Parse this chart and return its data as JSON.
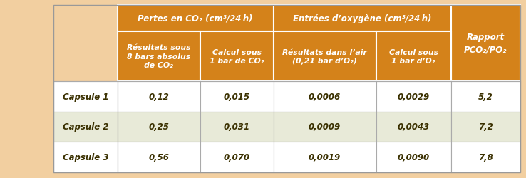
{
  "outer_bg": "#f2cfa0",
  "header_orange": "#d4821a",
  "row_white": "#ffffff",
  "row_green": "#e8ead8",
  "text_white": "#ffffff",
  "text_dark": "#3a3000",
  "col1_header_top": "Pertes en CO₂ (cm³/24 h)",
  "col2_header_top": "Entrées d’oxygène (cm³/24 h)",
  "col_rapport": "Rapport\nPCO₂/PO₂",
  "sub_headers": [
    "Résultats sous\n8 bars absolus\nde CO₂",
    "Calcul sous\n1 bar de CO₂",
    "Résultats dans l’air\n(0,21 bar d’O₂)",
    "Calcul sous\n1 bar d’O₂"
  ],
  "row_labels": [
    "Capsule 1",
    "Capsule 2",
    "Capsule 3"
  ],
  "data": [
    [
      "0,12",
      "0,015",
      "0,0006",
      "0,0029",
      "5,2"
    ],
    [
      "0,25",
      "0,031",
      "0,0009",
      "0,0043",
      "7,2"
    ],
    [
      "0,56",
      "0,070",
      "0,0019",
      "0,0090",
      "7,8"
    ]
  ],
  "figsize": [
    7.38,
    2.51
  ],
  "dpi": 100
}
